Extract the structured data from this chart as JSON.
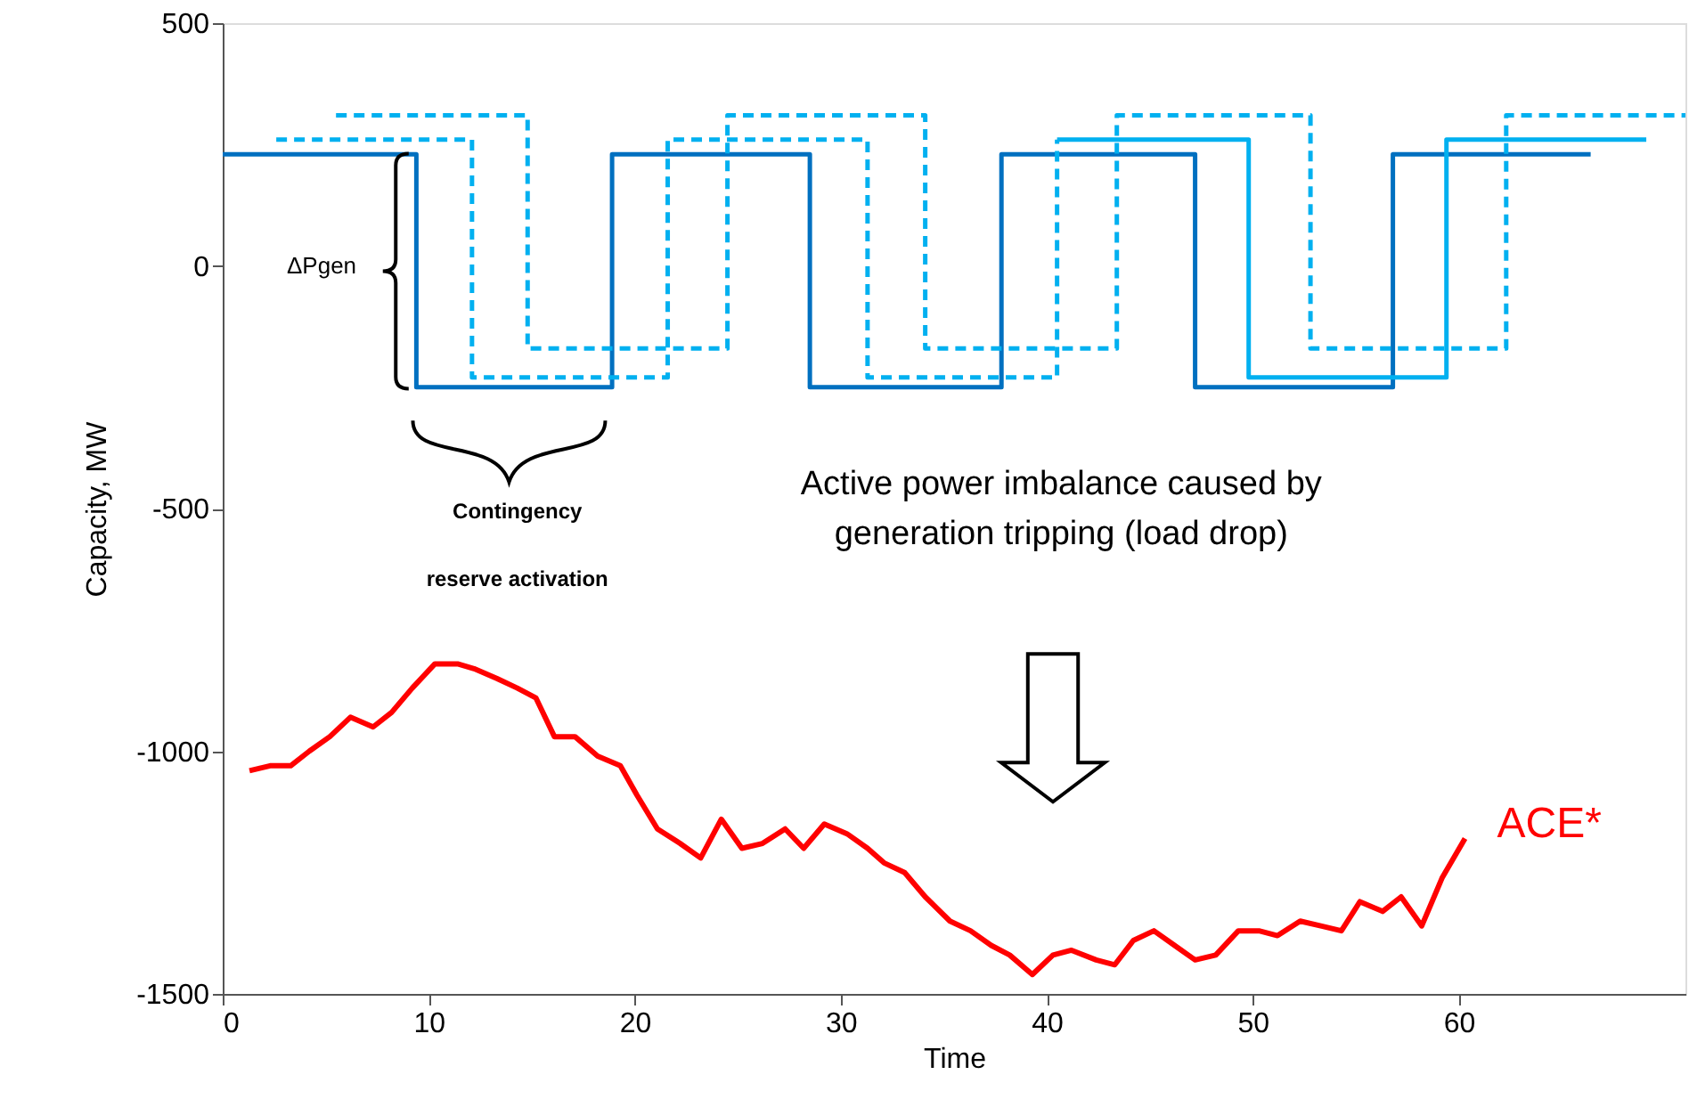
{
  "chart_data": {
    "type": "line",
    "xlabel": "Time",
    "ylabel": "Capacity, MW",
    "xlim": [
      0,
      71
    ],
    "xticks": [
      0,
      10,
      20,
      30,
      40,
      50,
      60
    ],
    "ylim": [
      -1500,
      500
    ],
    "yticks": [
      -1500,
      -1000,
      -500,
      0,
      500
    ],
    "grid": false,
    "marker": "none",
    "annotations": [
      "ΔPgen",
      "Contingency",
      "reserve activation",
      "Active power imbalance caused by",
      "generation tripping (load drop)"
    ],
    "series": [
      {
        "type": "step",
        "color": "#0070c0",
        "line_style": "solid",
        "x": [
          0,
          9.4,
          18.9,
          28.5,
          37.8,
          47.2,
          56.8,
          66.4
        ],
        "values": [
          230,
          -250,
          230,
          -250,
          230,
          -250,
          230,
          230
        ]
      },
      {
        "type": "step",
        "color": "#00b0f0",
        "line_style": "dashed",
        "x": [
          2.6,
          12.1,
          21.6,
          31.3,
          40.5
        ],
        "values": [
          260,
          -230,
          260,
          -230,
          260
        ]
      },
      {
        "type": "step",
        "color": "#00b0f0",
        "line_style": "solid",
        "x": [
          40.5,
          49.8,
          59.4,
          69.1
        ],
        "values": [
          260,
          -230,
          260,
          260
        ]
      },
      {
        "type": "step",
        "color": "#00b0f0",
        "line_style": "dashed",
        "x": [
          5.5,
          14.8,
          24.5,
          34.1,
          43.4,
          52.8,
          62.3,
          71
        ],
        "values": [
          310,
          -170,
          310,
          -170,
          310,
          -170,
          310,
          310
        ]
      },
      {
        "name": "ACE*",
        "color": "#ff0000",
        "line_style": "solid",
        "x": [
          1.3,
          2.3,
          3.3,
          4.2,
          5.2,
          6.2,
          7.3,
          8.2,
          9.2,
          10.3,
          11.4,
          12.2,
          13.3,
          14.3,
          15.2,
          16.1,
          17.1,
          18.2,
          19.3,
          20.1,
          21.1,
          22.2,
          23.2,
          24.2,
          25.2,
          26.2,
          27.3,
          28.2,
          29.2,
          30.3,
          31.3,
          32.1,
          33.1,
          34.1,
          35.3,
          36.3,
          37.3,
          38.2,
          39.3,
          40.3,
          41.2,
          42.4,
          43.3,
          44.2,
          45.2,
          46.2,
          47.2,
          48.2,
          49.3,
          50.3,
          51.2,
          52.3,
          53.3,
          54.3,
          55.2,
          56.3,
          57.2,
          58.2,
          59.2,
          60.3
        ],
        "values": [
          -1040,
          -1030,
          -1030,
          -1000,
          -970,
          -930,
          -950,
          -920,
          -870,
          -820,
          -820,
          -830,
          -850,
          -870,
          -890,
          -970,
          -970,
          -1010,
          -1030,
          -1090,
          -1160,
          -1190,
          -1220,
          -1140,
          -1200,
          -1190,
          -1160,
          -1200,
          -1150,
          -1170,
          -1200,
          -1230,
          -1250,
          -1300,
          -1350,
          -1370,
          -1400,
          -1420,
          -1460,
          -1420,
          -1410,
          -1430,
          -1440,
          -1390,
          -1370,
          -1400,
          -1430,
          -1420,
          -1370,
          -1370,
          -1380,
          -1350,
          -1360,
          -1370,
          -1310,
          -1330,
          -1300,
          -1360,
          -1260,
          -1180
        ]
      }
    ]
  }
}
